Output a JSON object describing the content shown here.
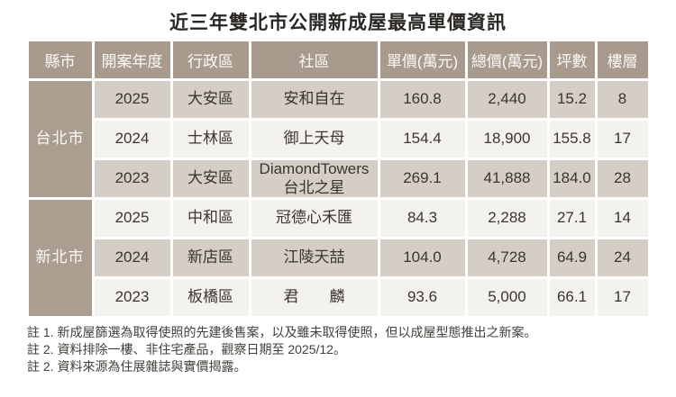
{
  "title": "近三年雙北市公開新成屋最高單價資訊",
  "chart_data": {
    "type": "table",
    "title": "近三年雙北市公開新成屋最高單價資訊",
    "headers": [
      "縣市",
      "開案年度",
      "行政區",
      "社區",
      "單價(萬元)",
      "總價(萬元)",
      "坪數",
      "樓層"
    ],
    "groups": [
      {
        "city": "台北市",
        "rows": [
          {
            "year": "2025",
            "district": "大安區",
            "community": "安和自在",
            "unit_price": "160.8",
            "total_price": "2,440",
            "ping": "15.2",
            "floor": "8"
          },
          {
            "year": "2024",
            "district": "士林區",
            "community": "御上天母",
            "unit_price": "154.4",
            "total_price": "18,900",
            "ping": "155.8",
            "floor": "17"
          },
          {
            "year": "2023",
            "district": "大安區",
            "community": "DiamondTowers\n台北之星",
            "unit_price": "269.1",
            "total_price": "41,888",
            "ping": "184.0",
            "floor": "28"
          }
        ]
      },
      {
        "city": "新北市",
        "rows": [
          {
            "year": "2025",
            "district": "中和區",
            "community": "冠德心禾匯",
            "unit_price": "84.3",
            "total_price": "2,288",
            "ping": "27.1",
            "floor": "14"
          },
          {
            "year": "2024",
            "district": "新店區",
            "community": "江陵天喆",
            "unit_price": "104.0",
            "total_price": "4,728",
            "ping": "64.9",
            "floor": "24"
          },
          {
            "year": "2023",
            "district": "板橋區",
            "community": "君　　麟",
            "unit_price": "93.6",
            "total_price": "5,000",
            "ping": "66.1",
            "floor": "17"
          }
        ]
      }
    ]
  },
  "notes": [
    "註 1. 新成屋篩選為取得使照的先建後售案，以及雖未取得使照，但以成屋型態推出之新案。",
    "註 2. 資料排除一樓、非住宅產品，觀察日期至 2025/12。",
    "註 2. 資料來源為住展雜誌與實價揭露。"
  ],
  "colors": {
    "header_bg": "#a89a8c",
    "city_cell_bg": "#ab9e91",
    "row_odd_bg": "#d5cec7",
    "row_even_bg": "#f4f2ee",
    "header_text": "#fbfaf8",
    "body_text": "#3a3531",
    "title_text": "#2a2724",
    "notes_text": "#44403b",
    "page_bg": "#ffffff"
  }
}
